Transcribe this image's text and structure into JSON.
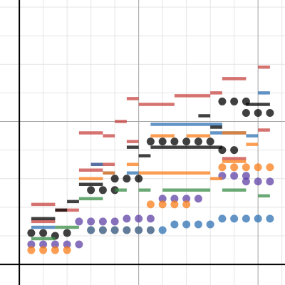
{
  "chart_data": {
    "type": "scatter",
    "xlim": [
      -0.81,
      11.13
    ],
    "ylim": [
      -0.72,
      9.25
    ],
    "xticks": [
      0,
      1,
      2,
      3,
      4,
      5,
      6,
      7,
      8,
      9,
      10,
      11
    ],
    "yticks": [
      0,
      1,
      2,
      3,
      4,
      5,
      6,
      7,
      8,
      9
    ],
    "x_major_ticks": [
      0,
      5,
      10
    ],
    "y_major_ticks": [
      0,
      5
    ],
    "grid": true,
    "axes": true,
    "series": [
      {
        "color": "#6042a6",
        "style": "point",
        "x": [
          0.5,
          1,
          1.5,
          2,
          2.5,
          2.5,
          3,
          3.5,
          4,
          4.5,
          5,
          5.5,
          6,
          6.5,
          7,
          7.5,
          8.5,
          9,
          9.5,
          9.5,
          10,
          10.5
        ],
        "values": [
          0.7,
          0.7,
          0.7,
          0.7,
          0.7,
          1.5,
          1.5,
          1.5,
          1.5,
          1.6,
          1.6,
          1.6,
          2.3,
          2.3,
          2.3,
          2.3,
          3.1,
          3.1,
          3.1,
          2.9,
          2.9,
          2.9
        ]
      },
      {
        "color": "#fa7e19",
        "style": "point",
        "x": [
          0.5,
          1,
          1.5,
          2,
          3,
          3.5,
          4,
          4.5,
          5,
          5.5,
          5.5,
          6,
          6.5,
          7,
          8.5,
          9,
          9.5,
          10,
          10.5
        ],
        "values": [
          0.5,
          0.5,
          0.5,
          0.5,
          1.2,
          1.2,
          1.2,
          1.2,
          1.2,
          1.2,
          2.1,
          2.1,
          2.1,
          2.1,
          3.4,
          3.4,
          3.4,
          3.4,
          3.4
        ]
      },
      {
        "color": "#2d70b3",
        "style": "point",
        "x": [
          3,
          3.5,
          4,
          4.5,
          5,
          5.5,
          6,
          6.5,
          7,
          7.5,
          8,
          8.5,
          9,
          9.5,
          10,
          10.5
        ],
        "values": [
          1.2,
          1.2,
          1.2,
          1.2,
          1.2,
          1.2,
          1.2,
          1.4,
          1.4,
          1.4,
          1.4,
          1.6,
          1.6,
          1.6,
          1.6,
          1.6
        ]
      },
      {
        "color": "#000000",
        "style": "point",
        "x": [
          0.5,
          1,
          1.5,
          2,
          3,
          3.5,
          4,
          4,
          4.5,
          5,
          5.5,
          6,
          6.5,
          7,
          7.5,
          8,
          8.5,
          9,
          8.5,
          9,
          9.5,
          9.5,
          10,
          10.5
        ],
        "values": [
          1.1,
          1.1,
          1.0,
          1.1,
          2.6,
          2.6,
          2.6,
          3.0,
          3.0,
          3.0,
          4.3,
          4.3,
          4.3,
          4.3,
          4.3,
          4.3,
          4.0,
          4.0,
          5.7,
          5.7,
          5.7,
          5.3,
          5.3,
          5.3
        ]
      },
      {
        "color": "#c74440",
        "style": "segment",
        "x": [
          0.5,
          1.5,
          2.5,
          2.5,
          3.5,
          4,
          4.5,
          4.5,
          5,
          6.5,
          8,
          8.5,
          10,
          10,
          8.5,
          0.5,
          3
        ],
        "x_end": [
          1.5,
          2.5,
          3.5,
          3.5,
          4,
          4.5,
          5,
          5,
          6.5,
          8,
          8.5,
          9.5,
          10.5,
          10.5,
          9.5,
          1.5,
          4
        ],
        "values": [
          2.1,
          1.9,
          3.3,
          4.6,
          4.5,
          5.0,
          4.3,
          5.8,
          5.6,
          5.9,
          6.0,
          6.5,
          6.9,
          4.7,
          3.7,
          1.5,
          3.5
        ]
      },
      {
        "color": "#2d70b3",
        "style": "segment",
        "x": [
          3,
          3.5,
          5.5,
          8,
          9.5,
          10,
          4.5,
          0.5
        ],
        "x_end": [
          3.5,
          4,
          8.5,
          9.5,
          10,
          10.5,
          5,
          1.5
        ],
        "values": [
          3.5,
          3.2,
          4.9,
          4.6,
          4.5,
          6.0,
          3.2,
          1.3
        ]
      },
      {
        "color": "#388c46",
        "style": "segment",
        "x": [
          0.5,
          1.5,
          2.5,
          4,
          5,
          6,
          7,
          8.5,
          10
        ],
        "x_end": [
          1.5,
          2.5,
          3.5,
          4.5,
          5.5,
          7,
          8,
          9.5,
          10.5
        ],
        "values": [
          0.9,
          1.3,
          2.3,
          2.6,
          2.6,
          2.6,
          2.6,
          2.6,
          2.4
        ]
      },
      {
        "color": "#fa7e19",
        "style": "segment",
        "x": [
          2.5,
          3.5,
          4.5,
          5,
          8,
          8.5,
          5.5,
          7,
          8.5,
          9.5
        ],
        "x_end": [
          3.5,
          4,
          5,
          8,
          8.5,
          9.5,
          6.5,
          8,
          9.5,
          10
        ],
        "values": [
          3.0,
          3.2,
          3.5,
          3.2,
          3.0,
          3.6,
          4.5,
          4.5,
          4.6,
          4.2
        ]
      },
      {
        "color": "#000000",
        "style": "segment",
        "x": [
          0.5,
          1.5,
          2,
          2.5,
          4.5,
          5,
          5.5,
          7.5,
          8,
          9.5
        ],
        "x_end": [
          1.5,
          2,
          2.5,
          3.5,
          5,
          5.5,
          8.5,
          8,
          8.5,
          10.5
        ],
        "values": [
          1.6,
          1.9,
          2.2,
          2.8,
          4.1,
          3.8,
          4.1,
          5.2,
          4.8,
          5.6
        ]
      }
    ]
  }
}
